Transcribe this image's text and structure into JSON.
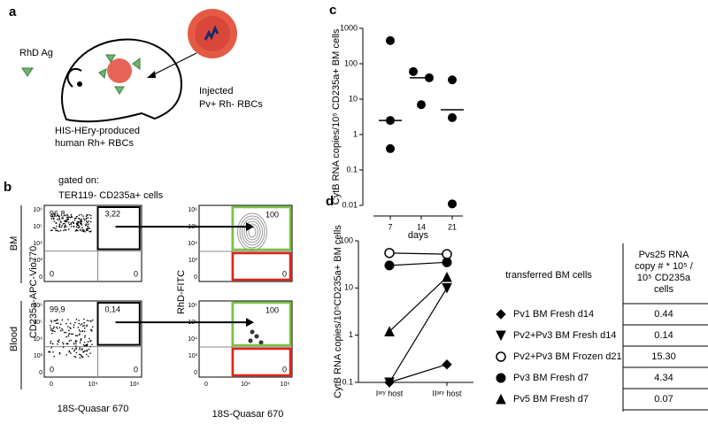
{
  "panel_labels": [
    "a",
    "b",
    "c",
    "d"
  ],
  "panel_a": {
    "antigen": "RhD Ag",
    "injected": "Injected",
    "injected_cells": "Pv+ Rh- RBCs",
    "host_1": "HIS-HEry-produced",
    "host_2": "human Rh+ RBCs"
  },
  "panel_b": {
    "gate_title": "gated on:",
    "gate": "TER119- CD235a+ cells",
    "y_label": "CD235a-APC-Vio770",
    "y_label_right": "RhD-FITC",
    "x_label": "18S-Quasar 670",
    "y_ticks": [
      "10⁶",
      "10⁵",
      "10⁴",
      "10³",
      "0"
    ],
    "x_ticks": [
      "0",
      "10⁴",
      "10⁶"
    ],
    "rows": [
      {
        "name": "BM",
        "left": [
          "96,8",
          "3,22",
          "0",
          "0"
        ],
        "right": [
          "100",
          "0"
        ]
      },
      {
        "name": "Blood",
        "left": [
          "99,9",
          "0,14",
          "0",
          "0"
        ],
        "right": [
          "100",
          "0"
        ]
      }
    ]
  },
  "chart_data": [
    {
      "type": "dot",
      "categories": [
        "7",
        "14",
        "21"
      ],
      "values": [
        [
          450,
          2.5,
          0.4
        ],
        [
          60,
          40,
          7
        ],
        [
          35,
          3,
          0.011
        ]
      ],
      "medians": [
        2.5,
        40,
        5
      ],
      "color": "#000000",
      "log": true,
      "ylim": [
        0.01,
        1000
      ],
      "yticks": [
        0.01,
        0.1,
        1,
        10,
        100,
        1000
      ],
      "xlabel": "days",
      "ylabel": "CytB RNA copies/10⁵ CD235a+ BM cells"
    },
    {
      "type": "line",
      "categories": [
        "Iᵃʳʸ host",
        "IIᵃʳʸ host"
      ],
      "log": true,
      "ylim": [
        0.1,
        100
      ],
      "yticks": [
        0.1,
        1,
        10,
        100
      ],
      "ylabel": "CytB RNA copies/10⁵CD235a+ BM cells",
      "series": [
        {
          "name": "Pv1 BM Fresh d14",
          "marker": "diamond",
          "color": "#000000",
          "values": [
            0.1,
            0.24
          ]
        },
        {
          "name": "Pv2+Pv3 BM Fresh d14",
          "marker": "triangle-down",
          "color": "#000000",
          "values": [
            0.1,
            10
          ]
        },
        {
          "name": "Pv2+Pv3 BM Frozen d21",
          "marker": "circle-open",
          "color": "#000000",
          "values": [
            55,
            52
          ]
        },
        {
          "name": "Pv3 BM Fresh d7",
          "marker": "circle",
          "color": "#000000",
          "values": [
            30,
            35
          ]
        },
        {
          "name": "Pv5 BM Fresh d7",
          "marker": "triangle",
          "color": "#000000",
          "values": [
            1.2,
            17
          ]
        }
      ]
    }
  ],
  "table": {
    "header": "transferred BM cells",
    "value_header": [
      "Pvs25 RNA",
      "copy # * 10⁵ /",
      "10⁵ CD235a",
      "cells"
    ],
    "values": [
      "0.44",
      "0.14",
      "15.30",
      "4.34",
      "0.07"
    ]
  }
}
